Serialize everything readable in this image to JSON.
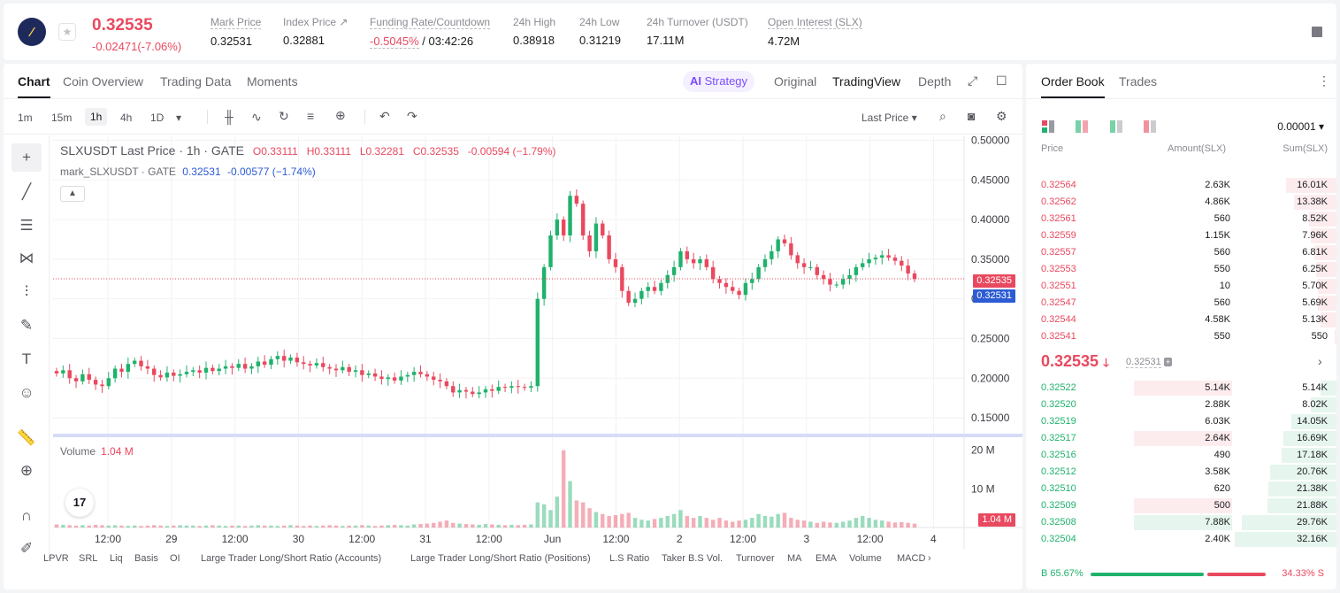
{
  "header": {
    "logo_letter": "⁄",
    "price": "0.32535",
    "change": "-0.02471(-7.06%)",
    "stats": [
      {
        "label": "Mark Price",
        "value": "0.32531"
      },
      {
        "label": "Index Price ↗",
        "value": "0.32881"
      },
      {
        "label": "Funding Rate/Countdown",
        "value_a": "-0.5045%",
        "value_b": "/ 03:42:26"
      },
      {
        "label": "24h High",
        "value": "0.38918"
      },
      {
        "label": "24h Low",
        "value": "0.31219"
      },
      {
        "label": "24h Turnover (USDT)",
        "value": "17.11M"
      },
      {
        "label": "Open Interest (SLX)",
        "value": "4.72M"
      }
    ]
  },
  "chart_tabs": {
    "items": [
      "Chart",
      "Coin Overview",
      "Trading Data",
      "Moments"
    ],
    "strategy": "Strategy",
    "right": [
      "Original",
      "TradingView",
      "Depth"
    ]
  },
  "toolbar": {
    "timeframes": [
      "1m",
      "15m",
      "1h",
      "4h",
      "1D"
    ],
    "price_type": "Last Price"
  },
  "legend": {
    "title": "SLXUSDT Last Price · 1h · GATE",
    "o": "O0.33111",
    "h": "H0.33111",
    "l": "L0.32281",
    "c": "C0.32535",
    "chg": "-0.00594 (−1.79%)",
    "mark_title": "mark_SLXUSDT · GATE",
    "mark_val": "0.32531",
    "mark_chg": "-0.00577 (−1.74%)",
    "volume_label": "Volume",
    "volume_val": "1.04 M",
    "tv_logo": "17"
  },
  "price_tags": {
    "last": "0.32535",
    "mark": "0.32531",
    "volume": "1.04 M"
  },
  "chart_data": {
    "type": "candlestick",
    "y_ticks": [
      "0.50000",
      "0.45000",
      "0.40000",
      "0.35000",
      "0.30000",
      "0.25000",
      "0.20000",
      "0.15000"
    ],
    "ylim": [
      0.13,
      0.505
    ],
    "x_ticks": [
      "12:00",
      "29",
      "12:00",
      "30",
      "12:00",
      "31",
      "12:00",
      "Jun",
      "12:00",
      "2",
      "12:00",
      "3",
      "12:00",
      "4"
    ],
    "volume_ticks": [
      "20 M",
      "10 M"
    ],
    "closes": [
      0.206,
      0.21,
      0.2,
      0.196,
      0.205,
      0.198,
      0.192,
      0.19,
      0.2,
      0.212,
      0.208,
      0.218,
      0.222,
      0.215,
      0.212,
      0.204,
      0.201,
      0.207,
      0.203,
      0.205,
      0.208,
      0.21,
      0.207,
      0.213,
      0.209,
      0.212,
      0.215,
      0.213,
      0.218,
      0.212,
      0.215,
      0.221,
      0.217,
      0.224,
      0.228,
      0.222,
      0.226,
      0.22,
      0.218,
      0.216,
      0.219,
      0.214,
      0.212,
      0.21,
      0.214,
      0.208,
      0.21,
      0.204,
      0.206,
      0.202,
      0.199,
      0.201,
      0.197,
      0.202,
      0.204,
      0.208,
      0.205,
      0.202,
      0.198,
      0.196,
      0.19,
      0.182,
      0.185,
      0.183,
      0.18,
      0.182,
      0.186,
      0.184,
      0.189,
      0.188,
      0.19,
      0.189,
      0.188,
      0.19,
      0.3,
      0.34,
      0.38,
      0.4,
      0.38,
      0.43,
      0.42,
      0.38,
      0.36,
      0.395,
      0.38,
      0.35,
      0.34,
      0.31,
      0.295,
      0.3,
      0.31,
      0.315,
      0.31,
      0.32,
      0.33,
      0.34,
      0.36,
      0.35,
      0.345,
      0.35,
      0.34,
      0.325,
      0.32,
      0.315,
      0.31,
      0.305,
      0.32,
      0.325,
      0.34,
      0.35,
      0.36,
      0.375,
      0.37,
      0.355,
      0.345,
      0.34,
      0.34,
      0.33,
      0.325,
      0.318,
      0.318,
      0.325,
      0.33,
      0.34,
      0.345,
      0.35,
      0.352,
      0.355,
      0.352,
      0.348,
      0.342,
      0.332,
      0.325
    ],
    "volumes": [
      0.8,
      0.7,
      0.6,
      0.5,
      0.6,
      0.5,
      0.7,
      0.6,
      0.5,
      0.6,
      0.5,
      0.4,
      0.5,
      0.4,
      0.5,
      0.6,
      0.5,
      0.4,
      0.5,
      0.6,
      0.5,
      0.5,
      0.4,
      0.5,
      0.6,
      0.5,
      0.4,
      0.5,
      0.5,
      0.4,
      0.5,
      0.6,
      0.5,
      0.5,
      0.4,
      0.5,
      0.6,
      0.5,
      0.4,
      0.5,
      0.4,
      0.5,
      0.6,
      0.5,
      0.4,
      0.5,
      0.5,
      0.6,
      0.5,
      0.4,
      0.5,
      0.6,
      0.7,
      0.6,
      0.5,
      0.8,
      0.9,
      1.0,
      1.2,
      1.5,
      1.8,
      1.2,
      1.0,
      0.9,
      0.8,
      0.7,
      0.9,
      0.8,
      0.7,
      0.6,
      0.7,
      0.6,
      0.7,
      0.8,
      6.5,
      6.0,
      4.5,
      8.0,
      20.0,
      12.0,
      7.0,
      6.5,
      5.0,
      4.0,
      3.5,
      3.0,
      3.2,
      3.5,
      3.8,
      2.5,
      2.0,
      1.8,
      2.2,
      2.5,
      3.0,
      3.5,
      4.5,
      3.0,
      2.5,
      3.0,
      2.5,
      2.0,
      2.5,
      1.8,
      1.5,
      1.8,
      2.0,
      2.5,
      3.5,
      3.0,
      2.8,
      3.5,
      3.8,
      2.5,
      2.0,
      1.8,
      1.5,
      1.2,
      1.5,
      1.3,
      1.2,
      1.5,
      1.8,
      2.5,
      3.0,
      2.5,
      2.0,
      1.8,
      1.5,
      1.3,
      1.4,
      1.2,
      1.0,
      1.04
    ]
  },
  "indicators": [
    "LPVR",
    "SRL",
    "Liq",
    "Basis",
    "OI",
    "Large Trader Long/Short Ratio (Accounts)",
    "Large Trader Long/Short Ratio (Positions)",
    "L.S Ratio",
    "Taker B.S Vol.",
    "Turnover",
    "MA",
    "EMA",
    "Volume",
    "MACD"
  ],
  "orderbook": {
    "tabs": [
      "Order Book",
      "Trades"
    ],
    "precision": "0.00001",
    "headers": {
      "price": "Price",
      "amount": "Amount(SLX)",
      "sum": "Sum(SLX)"
    },
    "asks": [
      {
        "price": "0.32564",
        "amount": "2.63K",
        "sum": "16.01K",
        "depth": 0.5
      },
      {
        "price": "0.32562",
        "amount": "4.86K",
        "sum": "13.38K",
        "depth": 0.42
      },
      {
        "price": "0.32561",
        "amount": "560",
        "sum": "8.52K",
        "depth": 0.27
      },
      {
        "price": "0.32559",
        "amount": "1.15K",
        "sum": "7.96K",
        "depth": 0.25
      },
      {
        "price": "0.32557",
        "amount": "560",
        "sum": "6.81K",
        "depth": 0.22
      },
      {
        "price": "0.32553",
        "amount": "550",
        "sum": "6.25K",
        "depth": 0.2
      },
      {
        "price": "0.32551",
        "amount": "10",
        "sum": "5.70K",
        "depth": 0.18
      },
      {
        "price": "0.32547",
        "amount": "560",
        "sum": "5.69K",
        "depth": 0.18
      },
      {
        "price": "0.32544",
        "amount": "4.58K",
        "sum": "5.13K",
        "depth": 0.16
      },
      {
        "price": "0.32541",
        "amount": "550",
        "sum": "550",
        "depth": 0.02
      }
    ],
    "last_price": "0.32535",
    "last_arrow": "🡓",
    "mark_price": "0.32531",
    "bids": [
      {
        "price": "0.32522",
        "amount": "5.14K",
        "sum": "5.14K",
        "depth": 0.16,
        "hl": true
      },
      {
        "price": "0.32520",
        "amount": "2.88K",
        "sum": "8.02K",
        "depth": 0.25,
        "hl": false
      },
      {
        "price": "0.32519",
        "amount": "6.03K",
        "sum": "14.05K",
        "depth": 0.44,
        "hl": false
      },
      {
        "price": "0.32517",
        "amount": "2.64K",
        "sum": "16.69K",
        "depth": 0.52,
        "hl": true
      },
      {
        "price": "0.32516",
        "amount": "490",
        "sum": "17.18K",
        "depth": 0.54,
        "hl": false
      },
      {
        "price": "0.32512",
        "amount": "3.58K",
        "sum": "20.76K",
        "depth": 0.65,
        "hl": false
      },
      {
        "price": "0.32510",
        "amount": "620",
        "sum": "21.38K",
        "depth": 0.67,
        "hl": false
      },
      {
        "price": "0.32509",
        "amount": "500",
        "sum": "21.88K",
        "depth": 0.68,
        "hl": true
      },
      {
        "price": "0.32508",
        "amount": "7.88K",
        "sum": "29.76K",
        "depth": 0.93,
        "hl": false,
        "hlg": true
      },
      {
        "price": "0.32504",
        "amount": "2.40K",
        "sum": "32.16K",
        "depth": 1.0,
        "hl": false
      }
    ],
    "buy_ratio": "B 65.67%",
    "sell_ratio": "34.33% S",
    "buy_fraction": 0.6567
  },
  "colors": {
    "up": "#20b26c",
    "down": "#e9495f",
    "mark": "#2d5bd3"
  }
}
